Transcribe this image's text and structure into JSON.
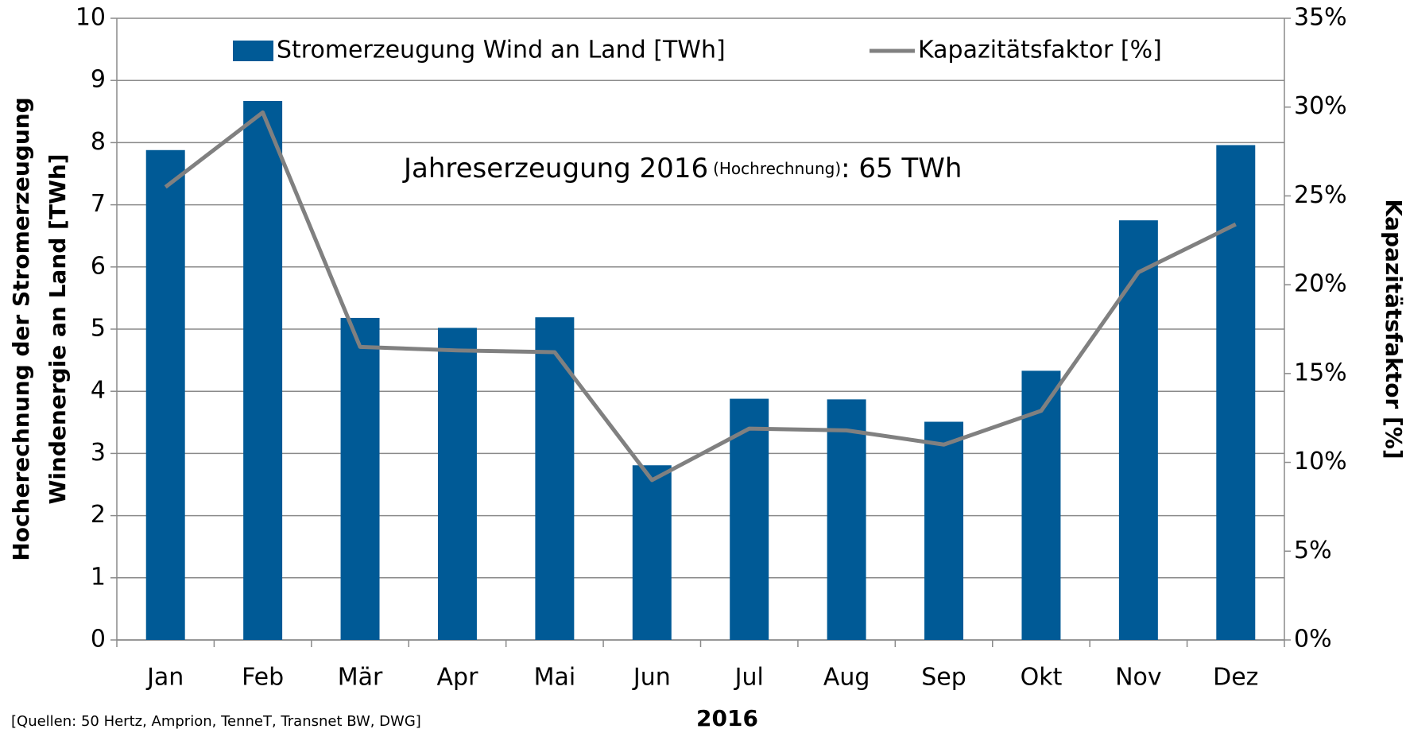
{
  "chart_data": {
    "type": "bar",
    "categories": [
      "Jan",
      "Feb",
      "Mär",
      "Apr",
      "Mai",
      "Jun",
      "Jul",
      "Aug",
      "Sep",
      "Okt",
      "Nov",
      "Dez"
    ],
    "series": [
      {
        "name": "Stromerzeugung Wind an Land [TWh]",
        "color": "#005a96",
        "type": "bar",
        "values": [
          7.88,
          8.67,
          5.18,
          5.02,
          5.19,
          2.81,
          3.88,
          3.87,
          3.51,
          4.33,
          6.75,
          7.96
        ]
      },
      {
        "name": "Kapazitätsfaktor [%]",
        "color": "#808080",
        "type": "line",
        "axis": "y2",
        "values": [
          25.5,
          29.7,
          16.5,
          16.3,
          16.2,
          9.0,
          11.9,
          11.8,
          11.0,
          12.9,
          20.7,
          23.4
        ]
      }
    ],
    "ylim": [
      0,
      10
    ],
    "yticks": [
      0,
      1,
      2,
      3,
      4,
      5,
      6,
      7,
      8,
      9,
      10
    ],
    "y2lim": [
      0,
      35
    ],
    "y2ticks": [
      {
        "value": 0,
        "label": "0%"
      },
      {
        "value": 5,
        "label": "5%"
      },
      {
        "value": 10,
        "label": "10%"
      },
      {
        "value": 15,
        "label": "15%"
      },
      {
        "value": 20,
        "label": "20%"
      },
      {
        "value": 25,
        "label": "25%"
      },
      {
        "value": 30,
        "label": "30%"
      },
      {
        "value": 35,
        "label": "35%"
      }
    ],
    "ylabel": [
      "Hocherechnung der Stromerzeugung",
      "Windenergie an Land [TWh]"
    ],
    "y2label": "Kapazitätsfaktor [%]",
    "xlabel": "2016",
    "annotation": [
      "Jahreserzeugung 2016",
      "(Hochrechnung)",
      ":  65 TWh"
    ],
    "source": "[Quellen: 50 Hertz, Amprion, TenneT, Transnet BW, DWG]",
    "grid": true,
    "legend": "top"
  }
}
